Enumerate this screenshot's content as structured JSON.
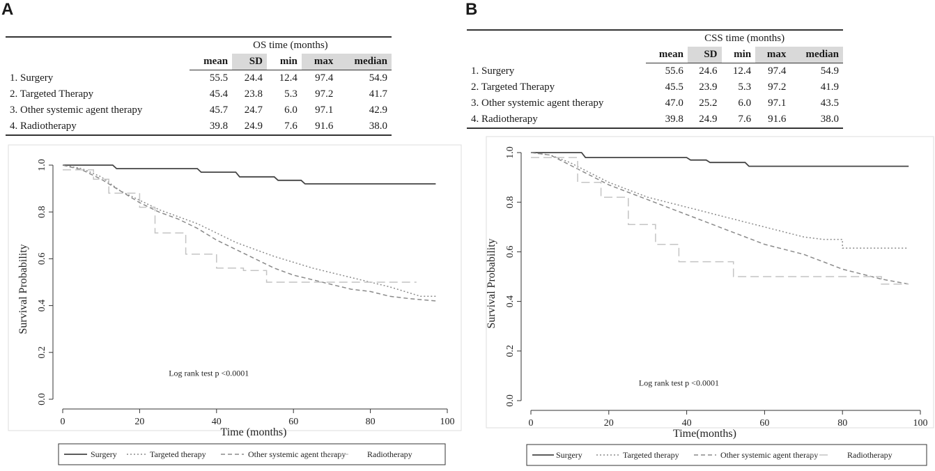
{
  "panels": [
    {
      "letter": "A",
      "table": {
        "group_header": "OS time (months)",
        "columns": [
          "mean",
          "SD",
          "min",
          "max",
          "median"
        ],
        "rows": [
          {
            "label": "1. Surgery",
            "values": [
              "55.5",
              "24.4",
              "12.4",
              "97.4",
              "54.9"
            ]
          },
          {
            "label": "2. Targeted Therapy",
            "values": [
              "45.4",
              "23.8",
              "5.3",
              "97.2",
              "41.7"
            ]
          },
          {
            "label": "3. Other systemic agent therapy",
            "values": [
              "45.7",
              "24.7",
              "6.0",
              "97.1",
              "42.9"
            ]
          },
          {
            "label": "4. Radiotherapy",
            "values": [
              "39.8",
              "24.9",
              "7.6",
              "91.6",
              "38.0"
            ]
          }
        ]
      }
    },
    {
      "letter": "B",
      "table": {
        "group_header": "CSS time (months)",
        "columns": [
          "mean",
          "SD",
          "min",
          "max",
          "median"
        ],
        "rows": [
          {
            "label": "1. Surgery",
            "values": [
              "55.6",
              "24.6",
              "12.4",
              "97.4",
              "54.9"
            ]
          },
          {
            "label": "2. Targeted Therapy",
            "values": [
              "45.5",
              "23.9",
              "5.3",
              "97.2",
              "41.9"
            ]
          },
          {
            "label": "3. Other systemic agent therapy",
            "values": [
              "47.0",
              "25.2",
              "6.0",
              "97.1",
              "43.5"
            ]
          },
          {
            "label": "4. Radiotherapy",
            "values": [
              "39.8",
              "24.9",
              "7.6",
              "91.6",
              "38.0"
            ]
          }
        ]
      }
    }
  ],
  "colors": {
    "surgery": "#444444",
    "targeted": "#8a8a8a",
    "other": "#8a8a8a",
    "radio": "#c4c4c4",
    "axis": "#333333",
    "frame": "#dddddd"
  },
  "chart_data": [
    {
      "type": "line",
      "title": "",
      "xlabel": "Time (months)",
      "ylabel": "Survival Probability",
      "xlim": [
        0,
        100
      ],
      "ylim": [
        0,
        1.0
      ],
      "xticks": [
        "0",
        "20",
        "40",
        "60",
        "80",
        "100"
      ],
      "yticks": [
        "0.0",
        "0.2",
        "0.4",
        "0.6",
        "0.8",
        "1.0"
      ],
      "annotation": "Log rank test p <0.0001",
      "legend_position": "bottom",
      "series": [
        {
          "name": "Surgery",
          "dash": "solid",
          "x": [
            0,
            13,
            14,
            35,
            36,
            45,
            46,
            55,
            56,
            62,
            63,
            97
          ],
          "y": [
            1.0,
            1.0,
            0.985,
            0.985,
            0.97,
            0.97,
            0.95,
            0.95,
            0.935,
            0.935,
            0.92,
            0.92
          ]
        },
        {
          "name": "Targeted therapy",
          "dash": "dotted",
          "x": [
            0,
            5,
            10,
            15,
            20,
            25,
            30,
            35,
            40,
            45,
            50,
            55,
            60,
            65,
            70,
            75,
            80,
            85,
            90,
            93,
            97
          ],
          "y": [
            1.0,
            0.985,
            0.95,
            0.89,
            0.85,
            0.81,
            0.78,
            0.75,
            0.71,
            0.67,
            0.64,
            0.61,
            0.585,
            0.56,
            0.54,
            0.52,
            0.5,
            0.48,
            0.455,
            0.44,
            0.44
          ]
        },
        {
          "name": "Other systemic agent therapy",
          "dash": "dashed",
          "x": [
            0,
            5,
            10,
            15,
            20,
            25,
            30,
            35,
            40,
            45,
            50,
            55,
            60,
            65,
            70,
            75,
            80,
            85,
            90,
            97
          ],
          "y": [
            1.0,
            0.98,
            0.94,
            0.89,
            0.84,
            0.8,
            0.77,
            0.73,
            0.68,
            0.64,
            0.6,
            0.56,
            0.53,
            0.51,
            0.49,
            0.47,
            0.46,
            0.44,
            0.43,
            0.42
          ]
        },
        {
          "name": "Radiotherapy",
          "dash": "longdash",
          "x": [
            0,
            8,
            8,
            12,
            12,
            20,
            20,
            24,
            24,
            32,
            32,
            40,
            40,
            47,
            47,
            53,
            53,
            92
          ],
          "y": [
            0.98,
            0.98,
            0.94,
            0.94,
            0.88,
            0.88,
            0.82,
            0.82,
            0.71,
            0.71,
            0.62,
            0.62,
            0.56,
            0.56,
            0.55,
            0.55,
            0.5,
            0.5
          ]
        }
      ]
    },
    {
      "type": "line",
      "title": "",
      "xlabel": "Time(months)",
      "ylabel": "Survival Probability",
      "xlim": [
        0,
        100
      ],
      "ylim": [
        0,
        1.0
      ],
      "xticks": [
        "0",
        "20",
        "40",
        "60",
        "80",
        "100"
      ],
      "yticks": [
        "0.0",
        "0.2",
        "0.4",
        "0.6",
        "0.8",
        "1.0"
      ],
      "annotation": "Log rank test p <0.0001",
      "legend_position": "bottom",
      "series": [
        {
          "name": "Surgery",
          "dash": "solid",
          "x": [
            0,
            13,
            14,
            40,
            41,
            45,
            46,
            55,
            56,
            97
          ],
          "y": [
            1.0,
            1.0,
            0.98,
            0.98,
            0.97,
            0.97,
            0.96,
            0.96,
            0.945,
            0.945
          ]
        },
        {
          "name": "Targeted therapy",
          "dash": "dotted",
          "x": [
            0,
            5,
            10,
            15,
            20,
            25,
            30,
            35,
            40,
            45,
            50,
            55,
            60,
            65,
            70,
            75,
            80,
            80,
            97
          ],
          "y": [
            1.0,
            0.99,
            0.96,
            0.92,
            0.88,
            0.85,
            0.82,
            0.8,
            0.78,
            0.76,
            0.74,
            0.72,
            0.7,
            0.68,
            0.66,
            0.65,
            0.65,
            0.615,
            0.615
          ]
        },
        {
          "name": "Other systemic agent therapy",
          "dash": "dashed",
          "x": [
            0,
            5,
            10,
            15,
            20,
            25,
            30,
            35,
            40,
            45,
            50,
            55,
            60,
            65,
            70,
            75,
            80,
            85,
            90,
            97
          ],
          "y": [
            1.0,
            0.99,
            0.95,
            0.91,
            0.87,
            0.84,
            0.81,
            0.78,
            0.75,
            0.72,
            0.69,
            0.66,
            0.63,
            0.61,
            0.59,
            0.56,
            0.53,
            0.51,
            0.49,
            0.47
          ]
        },
        {
          "name": "Radiotherapy",
          "dash": "longdash",
          "x": [
            0,
            12,
            12,
            18,
            18,
            25,
            25,
            32,
            32,
            38,
            38,
            52,
            52,
            90,
            90,
            97
          ],
          "y": [
            0.98,
            0.98,
            0.88,
            0.88,
            0.82,
            0.82,
            0.71,
            0.71,
            0.63,
            0.63,
            0.56,
            0.56,
            0.5,
            0.5,
            0.47,
            0.47
          ]
        }
      ]
    }
  ]
}
